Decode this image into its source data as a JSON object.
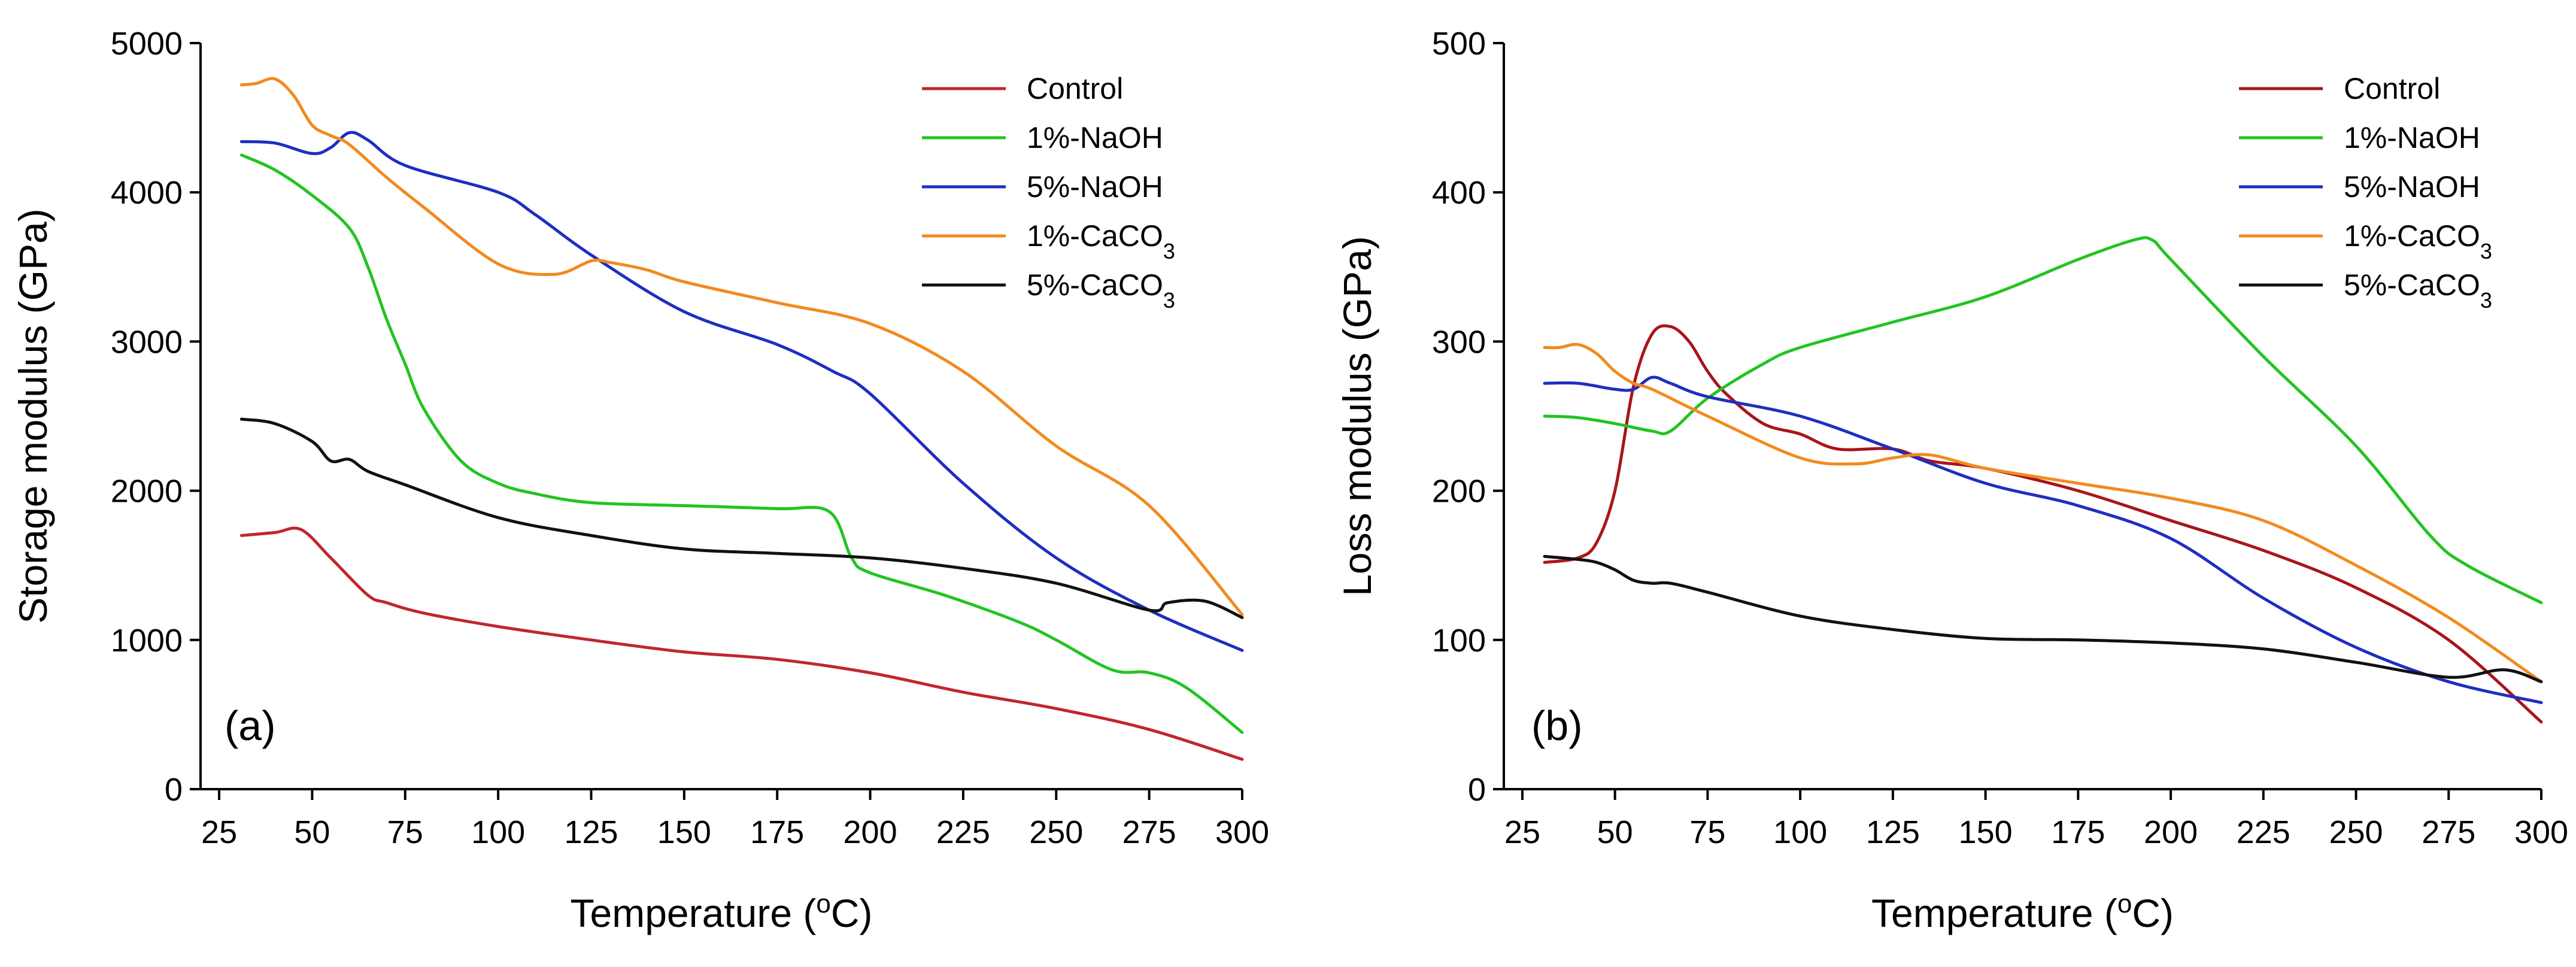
{
  "chart_data": [
    {
      "type": "line",
      "panel_label": "(a)",
      "xlabel": "Temperature (",
      "xlabel_sup": "o",
      "xlabel_tail": "C)",
      "ylabel": "Storage modulus (GPa)",
      "xlim": [
        20,
        300
      ],
      "ylim": [
        0,
        5000
      ],
      "xticks": [
        25,
        50,
        75,
        100,
        125,
        150,
        175,
        200,
        225,
        250,
        275,
        300
      ],
      "yticks": [
        0,
        1000,
        2000,
        3000,
        4000,
        5000
      ],
      "legend_position": "top-right",
      "series": [
        {
          "name": "Control",
          "sub": "",
          "color": "#c0272d",
          "x": [
            31,
            40,
            47,
            55,
            65,
            70,
            80,
            100,
            125,
            150,
            175,
            200,
            225,
            250,
            275,
            300
          ],
          "y": [
            1700,
            1720,
            1740,
            1550,
            1300,
            1250,
            1180,
            1090,
            1000,
            920,
            870,
            780,
            650,
            540,
            400,
            200
          ]
        },
        {
          "name": "1%-NaOH",
          "sub": "",
          "color": "#22c422",
          "x": [
            31,
            40,
            50,
            60,
            65,
            70,
            75,
            80,
            90,
            100,
            110,
            125,
            150,
            175,
            189,
            195,
            200,
            220,
            240,
            250,
            265,
            275,
            285,
            300
          ],
          "y": [
            4250,
            4150,
            3980,
            3760,
            3500,
            3150,
            2850,
            2550,
            2200,
            2050,
            1980,
            1920,
            1900,
            1880,
            1860,
            1550,
            1450,
            1300,
            1120,
            1000,
            800,
            780,
            680,
            380
          ]
        },
        {
          "name": "5%-NaOH",
          "sub": "",
          "color": "#1f2ec0",
          "x": [
            31,
            40,
            50,
            55,
            60,
            65,
            75,
            100,
            110,
            125,
            150,
            175,
            190,
            200,
            225,
            250,
            275,
            300
          ],
          "y": [
            4340,
            4330,
            4260,
            4300,
            4400,
            4350,
            4180,
            4000,
            3850,
            3580,
            3200,
            2980,
            2800,
            2650,
            2050,
            1550,
            1200,
            930
          ]
        },
        {
          "name": "1%-CaCO",
          "sub": "3",
          "color": "#f28a1e",
          "x": [
            31,
            35,
            40,
            45,
            50,
            55,
            60,
            70,
            80,
            100,
            115,
            125,
            130,
            140,
            150,
            175,
            200,
            225,
            250,
            275,
            300
          ],
          "y": [
            4720,
            4730,
            4760,
            4650,
            4450,
            4380,
            4320,
            4100,
            3900,
            3520,
            3450,
            3540,
            3530,
            3480,
            3400,
            3260,
            3120,
            2800,
            2300,
            1900,
            1170
          ]
        },
        {
          "name": "5%-CaCO",
          "sub": "3",
          "color": "#111111",
          "x": [
            31,
            40,
            50,
            55,
            60,
            65,
            75,
            100,
            125,
            150,
            175,
            200,
            225,
            250,
            275,
            280,
            290,
            300
          ],
          "y": [
            2480,
            2450,
            2330,
            2200,
            2210,
            2130,
            2040,
            1820,
            1700,
            1610,
            1580,
            1550,
            1480,
            1380,
            1200,
            1250,
            1260,
            1150
          ]
        }
      ]
    },
    {
      "type": "line",
      "panel_label": "(b)",
      "xlabel": "Temperature (",
      "xlabel_sup": "o",
      "xlabel_tail": "C)",
      "ylabel": "Loss modulus (GPa)",
      "xlim": [
        20,
        300
      ],
      "ylim": [
        0,
        500
      ],
      "xticks": [
        25,
        50,
        75,
        100,
        125,
        150,
        175,
        200,
        225,
        250,
        275,
        300
      ],
      "yticks": [
        0,
        100,
        200,
        300,
        400,
        500
      ],
      "legend_position": "top-right",
      "series": [
        {
          "name": "Control",
          "sub": "",
          "color": "#a8151b",
          "x": [
            31,
            40,
            45,
            50,
            55,
            60,
            65,
            70,
            75,
            80,
            90,
            100,
            110,
            125,
            135,
            150,
            175,
            200,
            225,
            250,
            275,
            300
          ],
          "y": [
            152,
            155,
            165,
            200,
            270,
            305,
            310,
            300,
            280,
            265,
            245,
            238,
            228,
            228,
            220,
            215,
            200,
            180,
            160,
            135,
            100,
            45
          ]
        },
        {
          "name": "1%-NaOH",
          "sub": "",
          "color": "#22c422",
          "x": [
            31,
            40,
            50,
            60,
            65,
            75,
            90,
            100,
            125,
            150,
            175,
            190,
            195,
            200,
            225,
            250,
            270,
            280,
            300
          ],
          "y": [
            250,
            249,
            245,
            240,
            240,
            262,
            285,
            296,
            313,
            330,
            355,
            368,
            368,
            355,
            290,
            230,
            170,
            150,
            125
          ]
        },
        {
          "name": "5%-NaOH",
          "sub": "",
          "color": "#1f2ec0",
          "x": [
            31,
            40,
            50,
            55,
            60,
            65,
            75,
            100,
            125,
            150,
            175,
            200,
            225,
            250,
            275,
            300
          ],
          "y": [
            272,
            272,
            268,
            268,
            276,
            272,
            263,
            250,
            228,
            205,
            190,
            168,
            128,
            95,
            72,
            58
          ]
        },
        {
          "name": "1%-CaCO",
          "sub": "3",
          "color": "#f28a1e",
          "x": [
            31,
            35,
            40,
            45,
            50,
            55,
            60,
            75,
            100,
            115,
            125,
            135,
            150,
            175,
            200,
            225,
            250,
            275,
            300
          ],
          "y": [
            296,
            296,
            298,
            292,
            280,
            272,
            268,
            250,
            222,
            218,
            222,
            224,
            215,
            205,
            195,
            180,
            150,
            115,
            72
          ]
        },
        {
          "name": "5%-CaCO",
          "sub": "3",
          "color": "#111111",
          "x": [
            31,
            40,
            45,
            50,
            55,
            60,
            65,
            75,
            100,
            125,
            150,
            175,
            200,
            225,
            250,
            275,
            290,
            300
          ],
          "y": [
            156,
            154,
            152,
            147,
            140,
            138,
            138,
            132,
            116,
            107,
            101,
            100,
            98,
            94,
            85,
            75,
            80,
            72
          ]
        }
      ]
    }
  ]
}
